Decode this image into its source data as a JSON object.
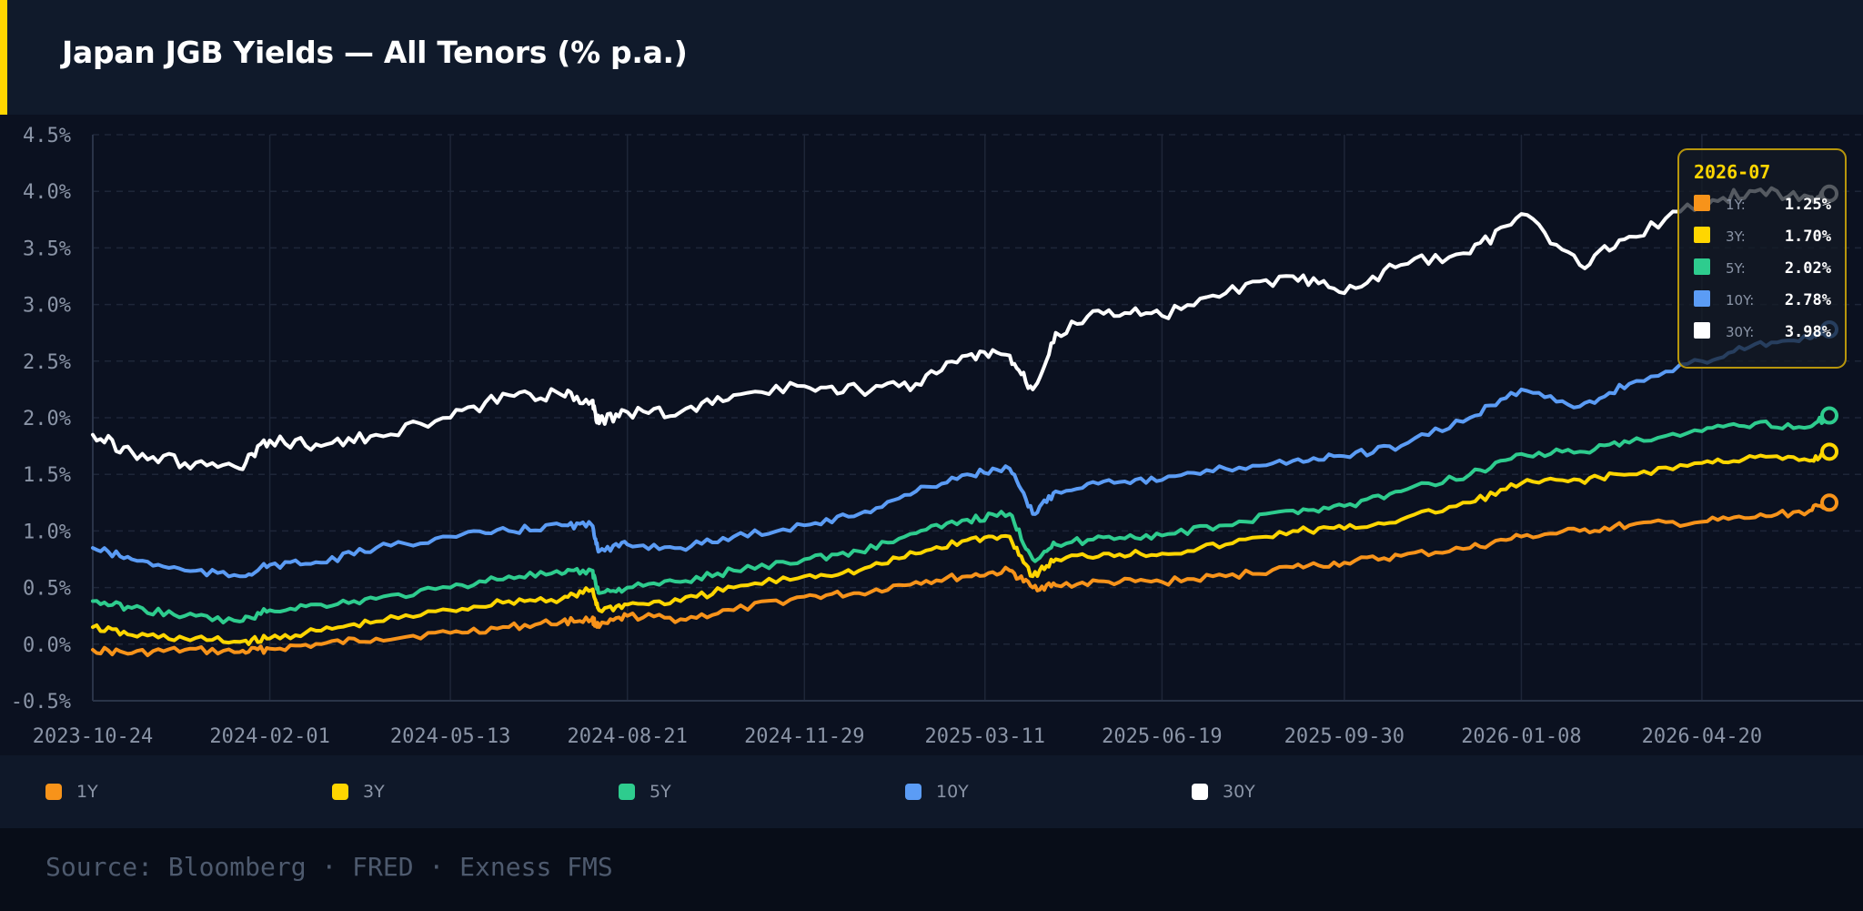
{
  "header": {
    "title": "Japan JGB Yields — All Tenors (% p.a.)"
  },
  "colors": {
    "accent": "#ffd600",
    "background": "#0b1120",
    "grid": "#1e2638"
  },
  "chart_data": {
    "type": "line",
    "title": "Japan JGB Yields — All Tenors (% p.a.)",
    "xlabel": "",
    "ylabel": "",
    "ylim": [
      -0.5,
      4.5
    ],
    "y_unit": "%",
    "y_ticks": [
      "4.5%",
      "4.0%",
      "3.5%",
      "3.0%",
      "2.5%",
      "2.0%",
      "1.5%",
      "1.0%",
      "0.5%",
      "0.0%",
      "-0.5%"
    ],
    "x_ticks": [
      "2023-10-24",
      "2024-02-01",
      "2024-05-13",
      "2024-08-21",
      "2024-11-29",
      "2025-03-11",
      "2025-06-19",
      "2025-09-30",
      "2026-01-08",
      "2026-04-20"
    ],
    "x": [
      "2023-10-24",
      "2023-11-15",
      "2023-12-15",
      "2024-01-15",
      "2024-02-01",
      "2024-03-01",
      "2024-04-01",
      "2024-05-13",
      "2024-06-15",
      "2024-07-15",
      "2024-08-01",
      "2024-08-05",
      "2024-08-21",
      "2024-09-20",
      "2024-10-20",
      "2024-11-29",
      "2024-12-30",
      "2025-01-31",
      "2025-03-01",
      "2025-03-25",
      "2025-04-07",
      "2025-04-20",
      "2025-05-20",
      "2025-06-19",
      "2025-07-25",
      "2025-09-01",
      "2025-09-30",
      "2025-11-01",
      "2025-12-10",
      "2026-01-08",
      "2026-02-10",
      "2026-03-10",
      "2026-04-20",
      "2026-05-20",
      "2026-06-20",
      "2026-07-01"
    ],
    "series": [
      {
        "name": "1Y",
        "color": "#f7931a",
        "values": [
          -0.05,
          -0.08,
          -0.05,
          -0.07,
          -0.04,
          0.0,
          0.05,
          0.1,
          0.15,
          0.2,
          0.22,
          0.15,
          0.25,
          0.22,
          0.3,
          0.42,
          0.45,
          0.55,
          0.6,
          0.65,
          0.5,
          0.52,
          0.55,
          0.55,
          0.6,
          0.68,
          0.72,
          0.78,
          0.85,
          0.95,
          1.0,
          1.05,
          1.08,
          1.12,
          1.18,
          1.25
        ]
      },
      {
        "name": "3Y",
        "color": "#ffd600",
        "values": [
          0.15,
          0.08,
          0.05,
          0.02,
          0.05,
          0.12,
          0.2,
          0.3,
          0.38,
          0.4,
          0.48,
          0.3,
          0.35,
          0.38,
          0.5,
          0.6,
          0.65,
          0.8,
          0.92,
          0.95,
          0.6,
          0.75,
          0.8,
          0.8,
          0.88,
          1.0,
          1.02,
          1.1,
          1.25,
          1.42,
          1.45,
          1.5,
          1.6,
          1.65,
          1.62,
          1.7
        ]
      },
      {
        "name": "5Y",
        "color": "#2ecc8e",
        "values": [
          0.38,
          0.32,
          0.25,
          0.2,
          0.3,
          0.35,
          0.4,
          0.5,
          0.6,
          0.62,
          0.65,
          0.45,
          0.5,
          0.55,
          0.65,
          0.75,
          0.82,
          0.98,
          1.1,
          1.15,
          0.75,
          0.88,
          0.95,
          0.96,
          1.05,
          1.18,
          1.22,
          1.35,
          1.5,
          1.68,
          1.7,
          1.78,
          1.88,
          1.95,
          1.92,
          2.02
        ]
      },
      {
        "name": "10Y",
        "color": "#5b9cf5",
        "values": [
          0.85,
          0.75,
          0.65,
          0.6,
          0.7,
          0.72,
          0.85,
          0.95,
          1.0,
          1.05,
          1.05,
          0.82,
          0.88,
          0.85,
          0.95,
          1.05,
          1.15,
          1.35,
          1.5,
          1.55,
          1.15,
          1.35,
          1.45,
          1.45,
          1.55,
          1.62,
          1.66,
          1.75,
          2.0,
          2.25,
          2.1,
          2.3,
          2.5,
          2.65,
          2.7,
          2.78
        ]
      },
      {
        "name": "30Y",
        "color": "#ffffff",
        "values": [
          1.85,
          1.7,
          1.6,
          1.55,
          1.8,
          1.75,
          1.85,
          2.0,
          2.2,
          2.2,
          2.15,
          1.95,
          2.05,
          2.05,
          2.2,
          2.28,
          2.25,
          2.3,
          2.55,
          2.55,
          2.25,
          2.75,
          2.95,
          2.9,
          3.1,
          3.25,
          3.1,
          3.35,
          3.45,
          3.8,
          3.35,
          3.6,
          3.9,
          4.0,
          3.95,
          3.98
        ]
      }
    ],
    "tooltip": {
      "date": "2026-07",
      "rows": [
        {
          "label": "1Y:",
          "value": "1.25%"
        },
        {
          "label": "3Y:",
          "value": "1.70%"
        },
        {
          "label": "5Y:",
          "value": "2.02%"
        },
        {
          "label": "10Y:",
          "value": "2.78%"
        },
        {
          "label": "30Y:",
          "value": "3.98%"
        }
      ]
    },
    "grid": true,
    "legend_position": "bottom"
  },
  "legend": [
    {
      "label": "1Y",
      "color": "#f7931a"
    },
    {
      "label": "3Y",
      "color": "#ffd600"
    },
    {
      "label": "5Y",
      "color": "#2ecc8e"
    },
    {
      "label": "10Y",
      "color": "#5b9cf5"
    },
    {
      "label": "30Y",
      "color": "#ffffff"
    }
  ],
  "footer": {
    "source": "Source: Bloomberg · FRED · Exness FMS"
  }
}
